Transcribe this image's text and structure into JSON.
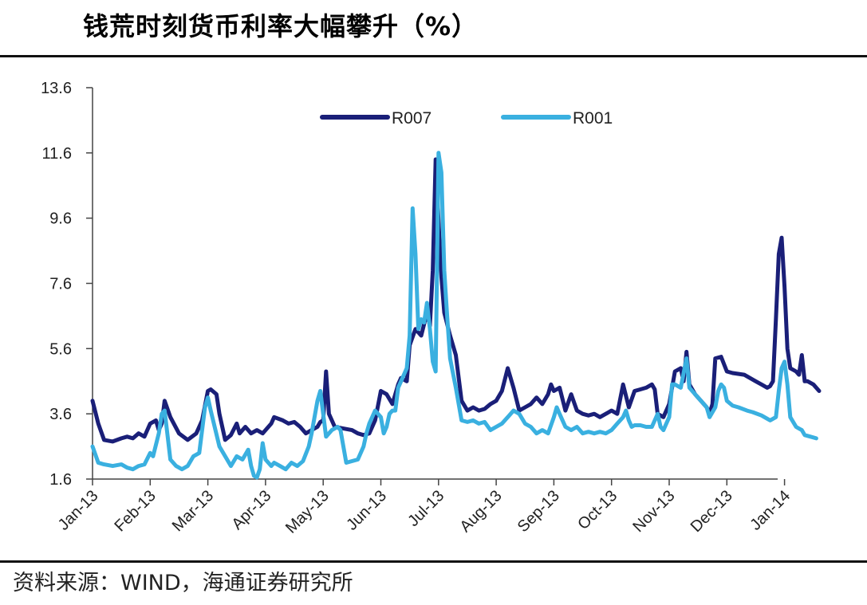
{
  "title": "钱荒时刻货币利率大幅攀升（%）",
  "source": "资料来源：WIND，海通证券研究所",
  "chart_data": {
    "type": "line",
    "title": "钱荒时刻货币利率大幅攀升（%）",
    "xlabel": "",
    "ylabel": "",
    "ylim": [
      1.6,
      13.6
    ],
    "yticks": [
      "1.6",
      "3.6",
      "5.6",
      "7.6",
      "9.6",
      "11.6",
      "13.6"
    ],
    "xlim": [
      0,
      12.15
    ],
    "x_tick_labels": [
      "Jan-13",
      "Feb-13",
      "Mar-13",
      "Apr-13",
      "May-13",
      "Jun-13",
      "Jul-13",
      "Aug-13",
      "Sep-13",
      "Oct-13",
      "Nov-13",
      "Dec-13",
      "Jan-14"
    ],
    "legend_position": "top-center",
    "grid": false,
    "series": [
      {
        "name": "R007",
        "color": "#1a1f78",
        "points": [
          [
            0.0,
            4.0
          ],
          [
            0.1,
            3.3
          ],
          [
            0.2,
            2.8
          ],
          [
            0.35,
            2.75
          ],
          [
            0.5,
            2.85
          ],
          [
            0.6,
            2.9
          ],
          [
            0.7,
            2.85
          ],
          [
            0.8,
            3.0
          ],
          [
            0.9,
            2.9
          ],
          [
            1.0,
            3.3
          ],
          [
            1.1,
            3.4
          ],
          [
            1.15,
            3.1
          ],
          [
            1.2,
            3.3
          ],
          [
            1.25,
            4.0
          ],
          [
            1.35,
            3.5
          ],
          [
            1.5,
            3.0
          ],
          [
            1.65,
            2.8
          ],
          [
            1.8,
            3.0
          ],
          [
            1.9,
            3.4
          ],
          [
            2.0,
            4.3
          ],
          [
            2.05,
            4.35
          ],
          [
            2.15,
            4.2
          ],
          [
            2.2,
            3.6
          ],
          [
            2.3,
            2.8
          ],
          [
            2.4,
            2.95
          ],
          [
            2.5,
            3.3
          ],
          [
            2.55,
            3.0
          ],
          [
            2.65,
            3.2
          ],
          [
            2.75,
            3.0
          ],
          [
            2.85,
            3.1
          ],
          [
            2.95,
            3.0
          ],
          [
            3.0,
            3.1
          ],
          [
            3.1,
            3.3
          ],
          [
            3.15,
            3.5
          ],
          [
            3.3,
            3.4
          ],
          [
            3.4,
            3.3
          ],
          [
            3.5,
            3.35
          ],
          [
            3.6,
            3.2
          ],
          [
            3.7,
            3.0
          ],
          [
            3.8,
            3.1
          ],
          [
            3.9,
            3.2
          ],
          [
            3.95,
            3.35
          ],
          [
            4.0,
            3.4
          ],
          [
            4.05,
            4.9
          ],
          [
            4.1,
            3.6
          ],
          [
            4.2,
            3.2
          ],
          [
            4.35,
            3.15
          ],
          [
            4.5,
            3.1
          ],
          [
            4.6,
            3.0
          ],
          [
            4.7,
            2.95
          ],
          [
            4.8,
            3.0
          ],
          [
            4.9,
            3.4
          ],
          [
            5.0,
            4.3
          ],
          [
            5.1,
            4.2
          ],
          [
            5.2,
            3.9
          ],
          [
            5.3,
            4.5
          ],
          [
            5.35,
            4.7
          ],
          [
            5.45,
            4.6
          ],
          [
            5.5,
            5.7
          ],
          [
            5.6,
            6.2
          ],
          [
            5.7,
            6.0
          ],
          [
            5.8,
            6.7
          ],
          [
            5.85,
            6.3
          ],
          [
            5.9,
            8.0
          ],
          [
            5.95,
            11.4
          ],
          [
            6.0,
            9.5
          ],
          [
            6.05,
            7.8
          ],
          [
            6.1,
            6.7
          ],
          [
            6.2,
            6.0
          ],
          [
            6.3,
            5.4
          ],
          [
            6.4,
            4.0
          ],
          [
            6.5,
            3.7
          ],
          [
            6.6,
            3.8
          ],
          [
            6.7,
            3.7
          ],
          [
            6.8,
            3.75
          ],
          [
            6.9,
            3.9
          ],
          [
            7.0,
            4.0
          ],
          [
            7.1,
            4.3
          ],
          [
            7.2,
            5.0
          ],
          [
            7.3,
            4.4
          ],
          [
            7.4,
            3.7
          ],
          [
            7.5,
            3.8
          ],
          [
            7.6,
            3.9
          ],
          [
            7.7,
            4.1
          ],
          [
            7.8,
            3.9
          ],
          [
            7.9,
            4.2
          ],
          [
            7.95,
            4.5
          ],
          [
            8.0,
            4.3
          ],
          [
            8.1,
            4.4
          ],
          [
            8.2,
            3.7
          ],
          [
            8.3,
            4.2
          ],
          [
            8.4,
            3.7
          ],
          [
            8.5,
            3.6
          ],
          [
            8.6,
            3.55
          ],
          [
            8.7,
            3.6
          ],
          [
            8.8,
            3.5
          ],
          [
            8.9,
            3.6
          ],
          [
            9.0,
            3.7
          ],
          [
            9.1,
            3.6
          ],
          [
            9.2,
            4.5
          ],
          [
            9.3,
            3.8
          ],
          [
            9.4,
            4.3
          ],
          [
            9.5,
            4.35
          ],
          [
            9.6,
            4.4
          ],
          [
            9.7,
            4.5
          ],
          [
            9.75,
            4.35
          ],
          [
            9.8,
            3.6
          ],
          [
            9.9,
            3.5
          ],
          [
            10.0,
            3.9
          ],
          [
            10.1,
            4.9
          ],
          [
            10.2,
            5.0
          ],
          [
            10.25,
            4.6
          ],
          [
            10.3,
            5.5
          ],
          [
            10.35,
            4.5
          ],
          [
            10.45,
            4.2
          ],
          [
            10.55,
            4.0
          ],
          [
            10.65,
            3.8
          ],
          [
            10.7,
            3.6
          ],
          [
            10.75,
            3.9
          ],
          [
            10.8,
            5.3
          ],
          [
            10.9,
            5.35
          ],
          [
            11.0,
            4.9
          ],
          [
            11.1,
            4.85
          ],
          [
            11.3,
            4.8
          ],
          [
            11.4,
            4.7
          ],
          [
            11.5,
            4.6
          ],
          [
            11.6,
            4.5
          ],
          [
            11.7,
            4.4
          ],
          [
            11.75,
            4.45
          ],
          [
            11.8,
            4.6
          ],
          [
            11.85,
            6.5
          ],
          [
            11.9,
            8.5
          ],
          [
            11.95,
            9.0
          ],
          [
            12.0,
            7.5
          ],
          [
            12.05,
            5.6
          ],
          [
            12.1,
            5.0
          ],
          [
            12.2,
            4.9
          ],
          [
            12.25,
            4.8
          ],
          [
            12.3,
            5.4
          ],
          [
            12.35,
            4.6
          ],
          [
            12.4,
            4.6
          ],
          [
            12.5,
            4.5
          ],
          [
            12.6,
            4.3
          ]
        ]
      },
      {
        "name": "R001",
        "color": "#3ab0e0",
        "points": [
          [
            0.0,
            2.6
          ],
          [
            0.1,
            2.1
          ],
          [
            0.2,
            2.05
          ],
          [
            0.35,
            2.0
          ],
          [
            0.5,
            2.05
          ],
          [
            0.6,
            1.95
          ],
          [
            0.7,
            1.9
          ],
          [
            0.8,
            2.0
          ],
          [
            0.9,
            2.05
          ],
          [
            1.0,
            2.4
          ],
          [
            1.05,
            2.3
          ],
          [
            1.15,
            3.0
          ],
          [
            1.2,
            3.6
          ],
          [
            1.25,
            3.7
          ],
          [
            1.35,
            2.2
          ],
          [
            1.45,
            2.0
          ],
          [
            1.55,
            1.9
          ],
          [
            1.65,
            2.0
          ],
          [
            1.75,
            2.3
          ],
          [
            1.85,
            2.4
          ],
          [
            1.95,
            3.8
          ],
          [
            2.0,
            4.1
          ],
          [
            2.05,
            3.7
          ],
          [
            2.2,
            2.6
          ],
          [
            2.3,
            2.3
          ],
          [
            2.4,
            2.0
          ],
          [
            2.5,
            2.3
          ],
          [
            2.6,
            2.2
          ],
          [
            2.7,
            2.5
          ],
          [
            2.75,
            2.0
          ],
          [
            2.8,
            1.7
          ],
          [
            2.85,
            1.65
          ],
          [
            2.9,
            1.9
          ],
          [
            2.95,
            2.7
          ],
          [
            3.0,
            2.2
          ],
          [
            3.1,
            2.0
          ],
          [
            3.15,
            2.1
          ],
          [
            3.25,
            2.0
          ],
          [
            3.35,
            1.9
          ],
          [
            3.45,
            2.1
          ],
          [
            3.55,
            2.0
          ],
          [
            3.65,
            2.15
          ],
          [
            3.75,
            2.6
          ],
          [
            3.8,
            3.0
          ],
          [
            3.9,
            4.0
          ],
          [
            3.95,
            4.3
          ],
          [
            4.0,
            3.6
          ],
          [
            4.05,
            2.9
          ],
          [
            4.15,
            3.1
          ],
          [
            4.25,
            3.2
          ],
          [
            4.3,
            3.1
          ],
          [
            4.4,
            2.1
          ],
          [
            4.5,
            2.15
          ],
          [
            4.6,
            2.2
          ],
          [
            4.7,
            2.6
          ],
          [
            4.75,
            3.0
          ],
          [
            4.8,
            3.3
          ],
          [
            4.9,
            3.7
          ],
          [
            5.0,
            3.5
          ],
          [
            5.05,
            3.0
          ],
          [
            5.1,
            3.2
          ],
          [
            5.15,
            3.6
          ],
          [
            5.2,
            3.7
          ],
          [
            5.25,
            3.7
          ],
          [
            5.3,
            4.4
          ],
          [
            5.35,
            4.6
          ],
          [
            5.45,
            5.0
          ],
          [
            5.5,
            6.0
          ],
          [
            5.55,
            9.9
          ],
          [
            5.6,
            8.5
          ],
          [
            5.65,
            6.2
          ],
          [
            5.7,
            6.5
          ],
          [
            5.75,
            6.4
          ],
          [
            5.8,
            7.0
          ],
          [
            5.85,
            6.2
          ],
          [
            5.9,
            5.2
          ],
          [
            5.95,
            4.9
          ],
          [
            6.0,
            11.6
          ],
          [
            6.05,
            11.0
          ],
          [
            6.1,
            8.0
          ],
          [
            6.15,
            6.6
          ],
          [
            6.2,
            5.3
          ],
          [
            6.3,
            4.4
          ],
          [
            6.4,
            3.4
          ],
          [
            6.5,
            3.35
          ],
          [
            6.6,
            3.4
          ],
          [
            6.7,
            3.3
          ],
          [
            6.8,
            3.35
          ],
          [
            6.9,
            3.1
          ],
          [
            7.0,
            3.2
          ],
          [
            7.1,
            3.3
          ],
          [
            7.2,
            3.5
          ],
          [
            7.3,
            3.7
          ],
          [
            7.4,
            3.6
          ],
          [
            7.5,
            3.3
          ],
          [
            7.6,
            3.2
          ],
          [
            7.7,
            3.0
          ],
          [
            7.8,
            3.1
          ],
          [
            7.9,
            3.0
          ],
          [
            8.0,
            3.5
          ],
          [
            8.05,
            3.8
          ],
          [
            8.1,
            3.6
          ],
          [
            8.2,
            3.2
          ],
          [
            8.3,
            3.1
          ],
          [
            8.4,
            3.2
          ],
          [
            8.5,
            3.0
          ],
          [
            8.6,
            3.05
          ],
          [
            8.7,
            3.0
          ],
          [
            8.8,
            3.05
          ],
          [
            8.9,
            3.0
          ],
          [
            9.0,
            3.1
          ],
          [
            9.1,
            3.3
          ],
          [
            9.2,
            3.5
          ],
          [
            9.25,
            3.7
          ],
          [
            9.3,
            3.4
          ],
          [
            9.35,
            3.2
          ],
          [
            9.4,
            3.25
          ],
          [
            9.5,
            3.25
          ],
          [
            9.6,
            3.2
          ],
          [
            9.7,
            3.2
          ],
          [
            9.8,
            3.6
          ],
          [
            9.85,
            3.2
          ],
          [
            9.9,
            3.1
          ],
          [
            10.0,
            3.5
          ],
          [
            10.05,
            4.5
          ],
          [
            10.1,
            4.5
          ],
          [
            10.2,
            4.4
          ],
          [
            10.3,
            5.3
          ],
          [
            10.35,
            4.4
          ],
          [
            10.45,
            4.2
          ],
          [
            10.55,
            4.0
          ],
          [
            10.65,
            3.8
          ],
          [
            10.7,
            3.5
          ],
          [
            10.8,
            3.8
          ],
          [
            10.85,
            4.3
          ],
          [
            10.9,
            4.5
          ],
          [
            10.95,
            4.4
          ],
          [
            11.0,
            4.0
          ],
          [
            11.1,
            3.85
          ],
          [
            11.2,
            3.8
          ],
          [
            11.35,
            3.7
          ],
          [
            11.45,
            3.65
          ],
          [
            11.6,
            3.55
          ],
          [
            11.7,
            3.45
          ],
          [
            11.75,
            3.4
          ],
          [
            11.85,
            3.5
          ],
          [
            11.9,
            4.3
          ],
          [
            11.95,
            5.0
          ],
          [
            12.0,
            5.2
          ],
          [
            12.05,
            4.5
          ],
          [
            12.1,
            3.5
          ],
          [
            12.2,
            3.2
          ],
          [
            12.25,
            3.15
          ],
          [
            12.3,
            3.1
          ],
          [
            12.35,
            2.95
          ],
          [
            12.45,
            2.9
          ],
          [
            12.55,
            2.85
          ]
        ]
      }
    ]
  }
}
